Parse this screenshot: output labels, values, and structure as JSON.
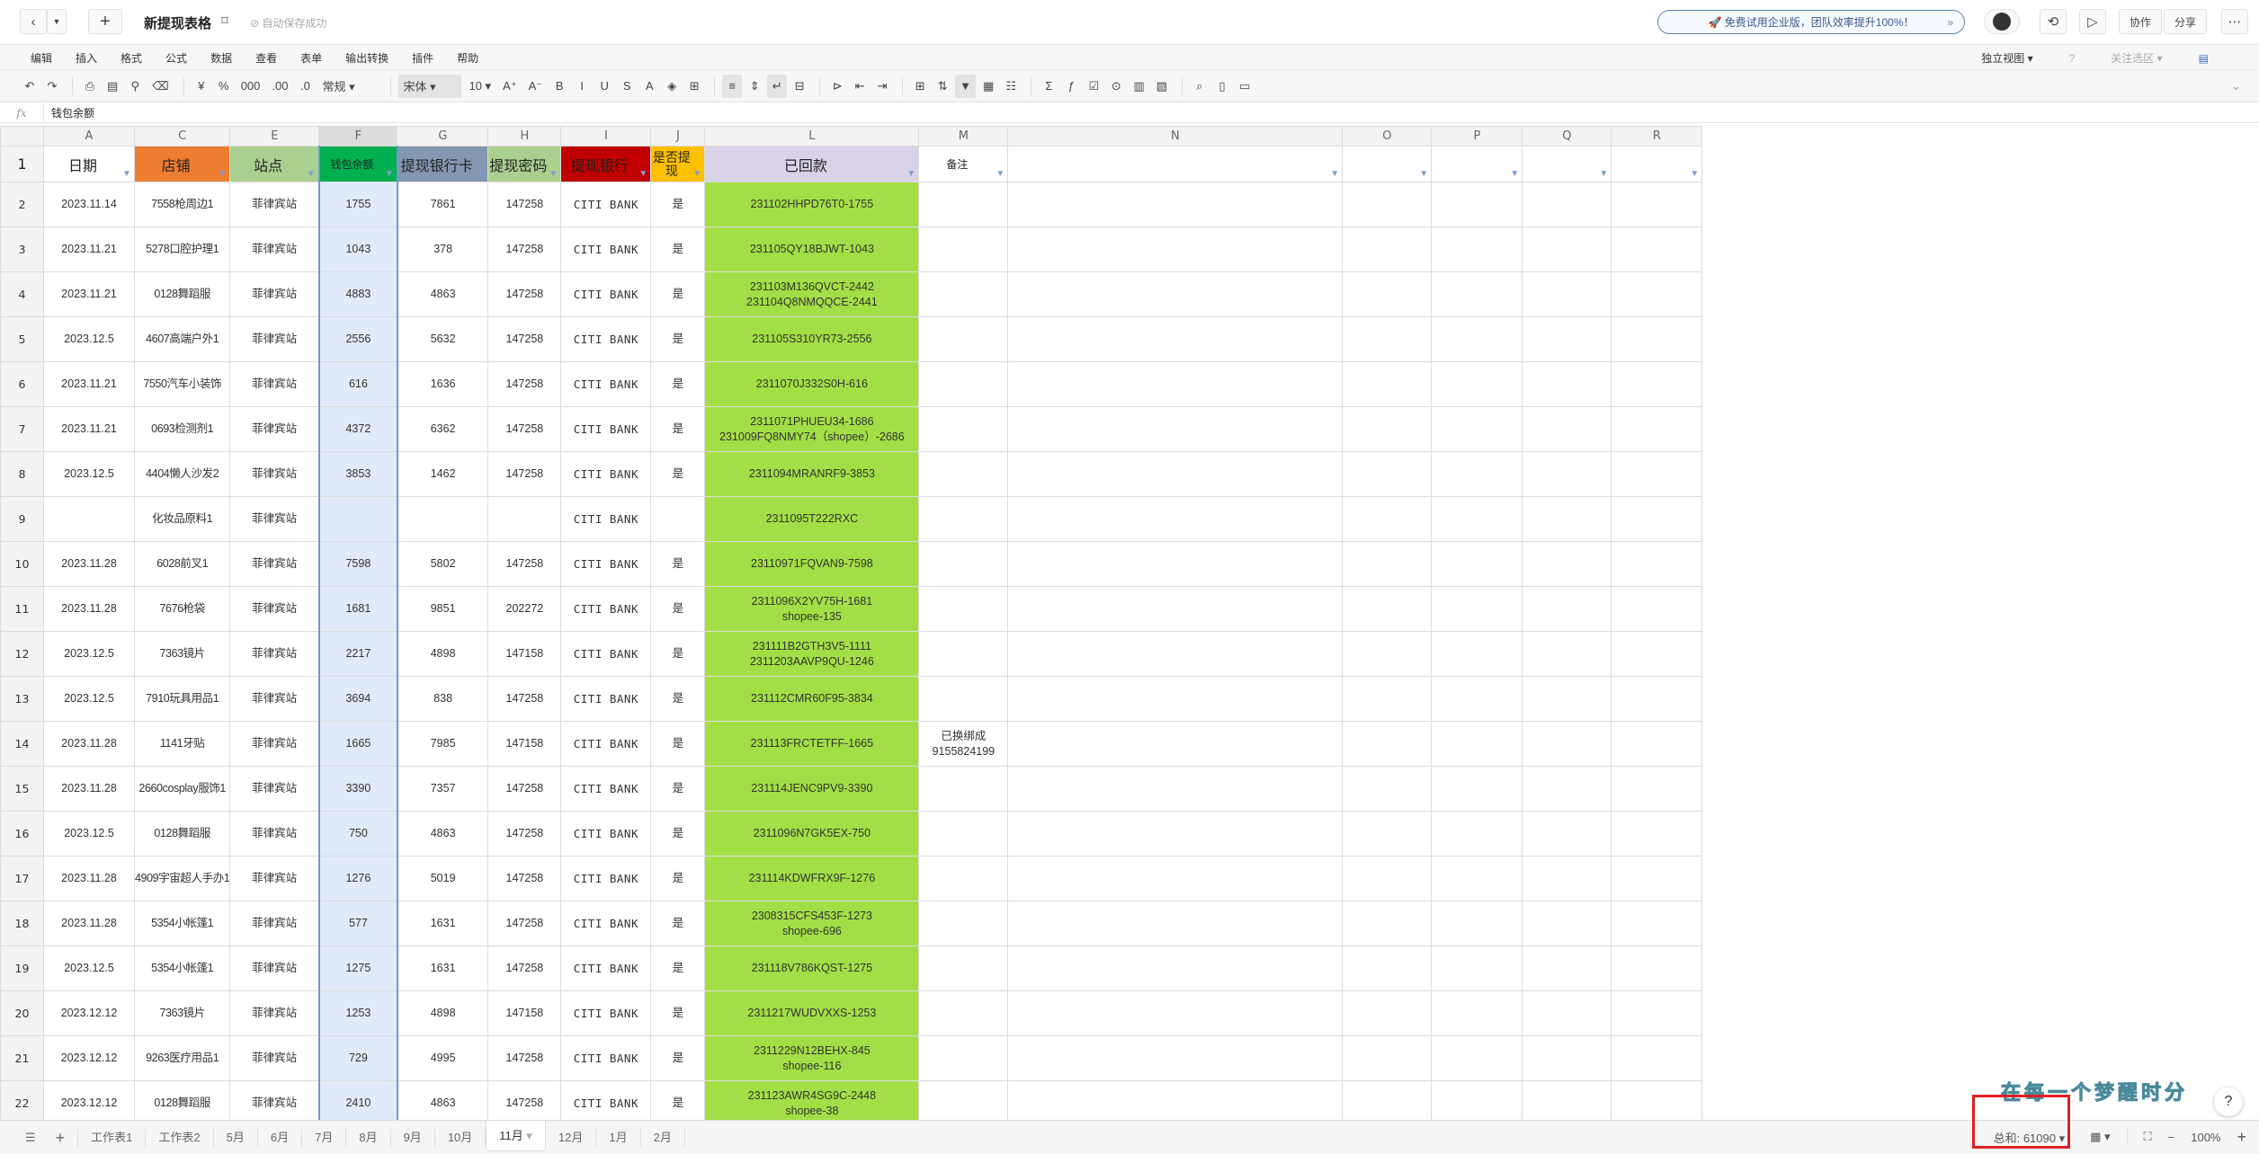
{
  "topbar": {
    "title": "新提现表格",
    "saved": "⊘ 自动保存成功",
    "promo": "🚀 免费试用企业版，团队效率提升100%！",
    "promo_arrow": "»",
    "collab": "协作",
    "share": "分享"
  },
  "menu": {
    "items": [
      "编辑",
      "插入",
      "格式",
      "公式",
      "数据",
      "查看",
      "表单",
      "输出转换",
      "插件",
      "帮助"
    ],
    "view": "独立视图 ▾",
    "focus": "关注选区 ▾"
  },
  "toolbar": [
    {
      "icon": "undo-icon"
    },
    {
      "icon": "redo-icon"
    },
    {
      "sep": true
    },
    {
      "icon": "print-icon"
    },
    {
      "icon": "paste-icon"
    },
    {
      "icon": "format-painter-icon"
    },
    {
      "icon": "eraser-icon"
    },
    {
      "sep": true
    },
    {
      "label": "¥"
    },
    {
      "label": "%"
    },
    {
      "label": "000"
    },
    {
      "label": ".00"
    },
    {
      "label": ".0"
    },
    {
      "label": "常规 ▾",
      "wide": true
    },
    {
      "sep": true
    },
    {
      "label": "宋体 ▾",
      "wide": true,
      "active": true
    },
    {
      "label": "10 ▾"
    },
    {
      "label": "A⁺"
    },
    {
      "label": "A⁻"
    },
    {
      "label": "B"
    },
    {
      "label": "I"
    },
    {
      "label": "U"
    },
    {
      "label": "S"
    },
    {
      "label": "A"
    },
    {
      "icon": "fill-color-icon"
    },
    {
      "icon": "border-icon"
    },
    {
      "sep": true
    },
    {
      "icon": "align-icon",
      "active": true
    },
    {
      "icon": "valign-icon"
    },
    {
      "icon": "wrap-icon",
      "active": true
    },
    {
      "icon": "merge-icon"
    },
    {
      "sep": true
    },
    {
      "icon": "text-direction-icon"
    },
    {
      "icon": "indent-decrease-icon"
    },
    {
      "icon": "indent-increase-icon"
    },
    {
      "sep": true
    },
    {
      "icon": "freeze-icon"
    },
    {
      "icon": "sort-icon"
    },
    {
      "icon": "filter-icon",
      "active": true
    },
    {
      "icon": "table-icon"
    },
    {
      "icon": "conditional-format-icon"
    },
    {
      "sep": true
    },
    {
      "icon": "sum-icon"
    },
    {
      "icon": "function-icon"
    },
    {
      "icon": "checkbox-icon"
    },
    {
      "icon": "link-icon"
    },
    {
      "icon": "chart-icon"
    },
    {
      "icon": "image-icon"
    },
    {
      "sep": true
    },
    {
      "icon": "find-icon"
    },
    {
      "icon": "save-icon"
    },
    {
      "icon": "comment-icon"
    }
  ],
  "formula": {
    "fx": "fx",
    "value": "钱包余额"
  },
  "columns": [
    "A",
    "C",
    "E",
    "F",
    "G",
    "H",
    "I",
    "J",
    "L",
    "M",
    "N",
    "O",
    "P",
    "Q",
    "R"
  ],
  "header": [
    "日期",
    "店铺",
    "站点",
    "钱包余额",
    "提现银行卡",
    "提现密码",
    "提现银行",
    "是否提现",
    "已回款",
    "备注",
    "",
    "",
    "",
    "",
    ""
  ],
  "header_colors": [
    "#ffffff",
    "#ED7D31",
    "#A9D08E",
    "#00B050",
    "#8497B0",
    "#A9D08E",
    "#C00000",
    "#FFC000",
    "#D9D2E9",
    "#ffffff",
    "#ffffff",
    "#ffffff",
    "#ffffff",
    "#ffffff",
    "#ffffff"
  ],
  "rows": [
    [
      "2",
      "2023.11.14",
      "7558枪周边1",
      "菲律宾站",
      "1755",
      "7861",
      "147258",
      "CITI BANK",
      "是",
      "231102HHPD76T0-1755",
      ""
    ],
    [
      "3",
      "2023.11.21",
      "5278口腔护理1",
      "菲律宾站",
      "1043",
      "378",
      "147258",
      "CITI BANK",
      "是",
      "231105QY18BJWT-1043",
      ""
    ],
    [
      "4",
      "2023.11.21",
      "0128舞蹈服",
      "菲律宾站",
      "4883",
      "4863",
      "147258",
      "CITI BANK",
      "是",
      "231103M136QVCT-2442\n231104Q8NMQQCE-2441",
      ""
    ],
    [
      "5",
      "2023.12.5",
      "4607高端户外1",
      "菲律宾站",
      "2556",
      "5632",
      "147258",
      "CITI BANK",
      "是",
      "231105S310YR73-2556",
      ""
    ],
    [
      "6",
      "2023.11.21",
      "7550汽车小装饰",
      "菲律宾站",
      "616",
      "1636",
      "147258",
      "CITI BANK",
      "是",
      "2311070J332S0H-616",
      ""
    ],
    [
      "7",
      "2023.11.21",
      "0693检测剂1",
      "菲律宾站",
      "4372",
      "6362",
      "147258",
      "CITI BANK",
      "是",
      "2311071PHUEU34-1686\n231009FQ8NMY74（shopee）-2686",
      ""
    ],
    [
      "8",
      "2023.12.5",
      "4404懒人沙发2",
      "菲律宾站",
      "3853",
      "1462",
      "147258",
      "CITI BANK",
      "是",
      "2311094MRANRF9-3853",
      ""
    ],
    [
      "9",
      "",
      "化妆品原料1",
      "菲律宾站",
      "",
      "",
      "",
      "CITI BANK",
      "",
      "2311095T222RXC",
      ""
    ],
    [
      "10",
      "2023.11.28",
      "6028前叉1",
      "菲律宾站",
      "7598",
      "5802",
      "147258",
      "CITI BANK",
      "是",
      "23110971FQVAN9-7598",
      ""
    ],
    [
      "11",
      "2023.11.28",
      "7676枪袋",
      "菲律宾站",
      "1681",
      "9851",
      "202272",
      "CITI BANK",
      "是",
      "2311096X2YV75H-1681\nshopee-135",
      ""
    ],
    [
      "12",
      "2023.12.5",
      "7363镜片",
      "菲律宾站",
      "2217",
      "4898",
      "147158",
      "CITI BANK",
      "是",
      "231111B2GTH3V5-1111\n2311203AAVP9QU-1246",
      ""
    ],
    [
      "13",
      "2023.12.5",
      "7910玩具用品1",
      "菲律宾站",
      "3694",
      "838",
      "147258",
      "CITI BANK",
      "是",
      "231112CMR60F95-3834",
      ""
    ],
    [
      "14",
      "2023.11.28",
      "1141牙贴",
      "菲律宾站",
      "1665",
      "7985",
      "147158",
      "CITI BANK",
      "是",
      "231113FRCTETFF-1665",
      "已换绑成\n9155824199"
    ],
    [
      "15",
      "2023.11.28",
      "2660cosplay服饰1",
      "菲律宾站",
      "3390",
      "7357",
      "147258",
      "CITI BANK",
      "是",
      "231114JENC9PV9-3390",
      ""
    ],
    [
      "16",
      "2023.12.5",
      "0128舞蹈服",
      "菲律宾站",
      "750",
      "4863",
      "147258",
      "CITI BANK",
      "是",
      "2311096N7GK5EX-750",
      ""
    ],
    [
      "17",
      "2023.11.28",
      "4909宇宙超人手办1",
      "菲律宾站",
      "1276",
      "5019",
      "147258",
      "CITI BANK",
      "是",
      "231114KDWFRX9F-1276",
      ""
    ],
    [
      "18",
      "2023.11.28",
      "5354小帐篷1",
      "菲律宾站",
      "577",
      "1631",
      "147258",
      "CITI BANK",
      "是",
      "2308315CFS453F-1273\nshopee-696",
      ""
    ],
    [
      "19",
      "2023.12.5",
      "5354小帐篷1",
      "菲律宾站",
      "1275",
      "1631",
      "147258",
      "CITI BANK",
      "是",
      "231118V786KQST-1275",
      ""
    ],
    [
      "20",
      "2023.12.12",
      "7363镜片",
      "菲律宾站",
      "1253",
      "4898",
      "147158",
      "CITI BANK",
      "是",
      "2311217WUDVXXS-1253",
      ""
    ],
    [
      "21",
      "2023.12.12",
      "9263医疗用品1",
      "菲律宾站",
      "729",
      "4995",
      "147258",
      "CITI BANK",
      "是",
      "2311229N12BEHX-845\nshopee-116",
      ""
    ],
    [
      "22",
      "2023.12.12",
      "0128舞蹈服",
      "菲律宾站",
      "2410",
      "4863",
      "147258",
      "CITI BANK",
      "是",
      "231123AWR4SG9C-2448\nshopee-38",
      ""
    ]
  ],
  "sheets": [
    "工作表1",
    "工作表2",
    "5月",
    "6月",
    "7月",
    "8月",
    "9月",
    "10月",
    "11月",
    "12月",
    "1月",
    "2月"
  ],
  "active_sheet": "11月",
  "status": {
    "sum": "总和: 61090 ▾",
    "zoom": "100%"
  },
  "watermark": "在每一个梦醒时分",
  "colors": {
    "paid_green": "#A2DF46",
    "selected_column": "#E1EAF8",
    "accent_blue": "#6E98D6",
    "highlight_box": "#E02020"
  }
}
